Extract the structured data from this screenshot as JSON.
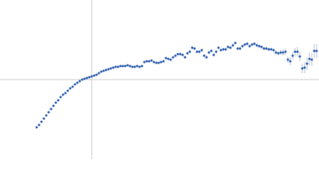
{
  "chart_data": {
    "type": "scatter",
    "xlim": [
      -115,
      285
    ],
    "ylim": [
      -100,
      100
    ],
    "color": "#3a68b4",
    "error_color": "#b8c4d8",
    "axis_color": "#cccccc",
    "x": [
      -69,
      -66,
      -63,
      -60,
      -57,
      -54,
      -51,
      -48,
      -45,
      -42,
      -39,
      -36,
      -33,
      -30,
      -27,
      -24,
      -21,
      -18,
      -15,
      -12,
      -9,
      -6,
      -3,
      0,
      3,
      6,
      9,
      12,
      15,
      18,
      21,
      24,
      27,
      30,
      33,
      36,
      39,
      42,
      45,
      48,
      51,
      54,
      57,
      60,
      63,
      66,
      69,
      72,
      75,
      78,
      81,
      84,
      87,
      90,
      93,
      96,
      99,
      102,
      105,
      108,
      111,
      114,
      117,
      120,
      123,
      126,
      129,
      132,
      135,
      138,
      141,
      144,
      147,
      150,
      153,
      156,
      159,
      162,
      165,
      168,
      171,
      174,
      177,
      180,
      183,
      186,
      189,
      192,
      195,
      198,
      201,
      204,
      207,
      210,
      213,
      216,
      219,
      222,
      225,
      228,
      231,
      234,
      237,
      240,
      243,
      246,
      249,
      252,
      255,
      258,
      261,
      264,
      267,
      270,
      273,
      276,
      279,
      282
    ],
    "values": [
      -60,
      -57,
      -53,
      -49,
      -45,
      -41,
      -37,
      -33,
      -29,
      -26,
      -22,
      -19,
      -17,
      -14,
      -11,
      -9,
      -6,
      -4,
      -2,
      0,
      1,
      2,
      3,
      4,
      5,
      6,
      8,
      10,
      11,
      12,
      13,
      14,
      15,
      16,
      16,
      17,
      17,
      17,
      18,
      17,
      16,
      16,
      17,
      16,
      17,
      22,
      23,
      23,
      24,
      22,
      21,
      21,
      22,
      23,
      27,
      26,
      25,
      28,
      30,
      32,
      32,
      31,
      28,
      33,
      35,
      40,
      39,
      35,
      35,
      37,
      30,
      28,
      34,
      36,
      31,
      35,
      40,
      37,
      38,
      38,
      41,
      40,
      43,
      46,
      39,
      39,
      42,
      44,
      45,
      42,
      44,
      45,
      43,
      42,
      41,
      39,
      39,
      38,
      38,
      37,
      34,
      33,
      34,
      34,
      35,
      25,
      23,
      30,
      35,
      35,
      29,
      14,
      15,
      20,
      26,
      25,
      36,
      36
    ],
    "errors": [
      1,
      1,
      1,
      1,
      1,
      1,
      1,
      1,
      1,
      1,
      1,
      1,
      1,
      1,
      1,
      1,
      1,
      1,
      1,
      1,
      1,
      1,
      1,
      1,
      1,
      1,
      1,
      1,
      1,
      1,
      1,
      1,
      1,
      1,
      1,
      1,
      1,
      1,
      1,
      1,
      1,
      1,
      1,
      1,
      1,
      1,
      1,
      1,
      1,
      1,
      1,
      1,
      1,
      1,
      1,
      1,
      1,
      1,
      1,
      1,
      2,
      2,
      2,
      2,
      2,
      2,
      2,
      2,
      2,
      2,
      2,
      2,
      2,
      2,
      2,
      2,
      2,
      2,
      2,
      2,
      2,
      2,
      2,
      2,
      2,
      2,
      2,
      2,
      2,
      2,
      2,
      2,
      2,
      2,
      2,
      2,
      2,
      2,
      2,
      2,
      3,
      3,
      3,
      4,
      4,
      4,
      5,
      5,
      5,
      6,
      6,
      6,
      7,
      8,
      8,
      8,
      9,
      9
    ]
  }
}
